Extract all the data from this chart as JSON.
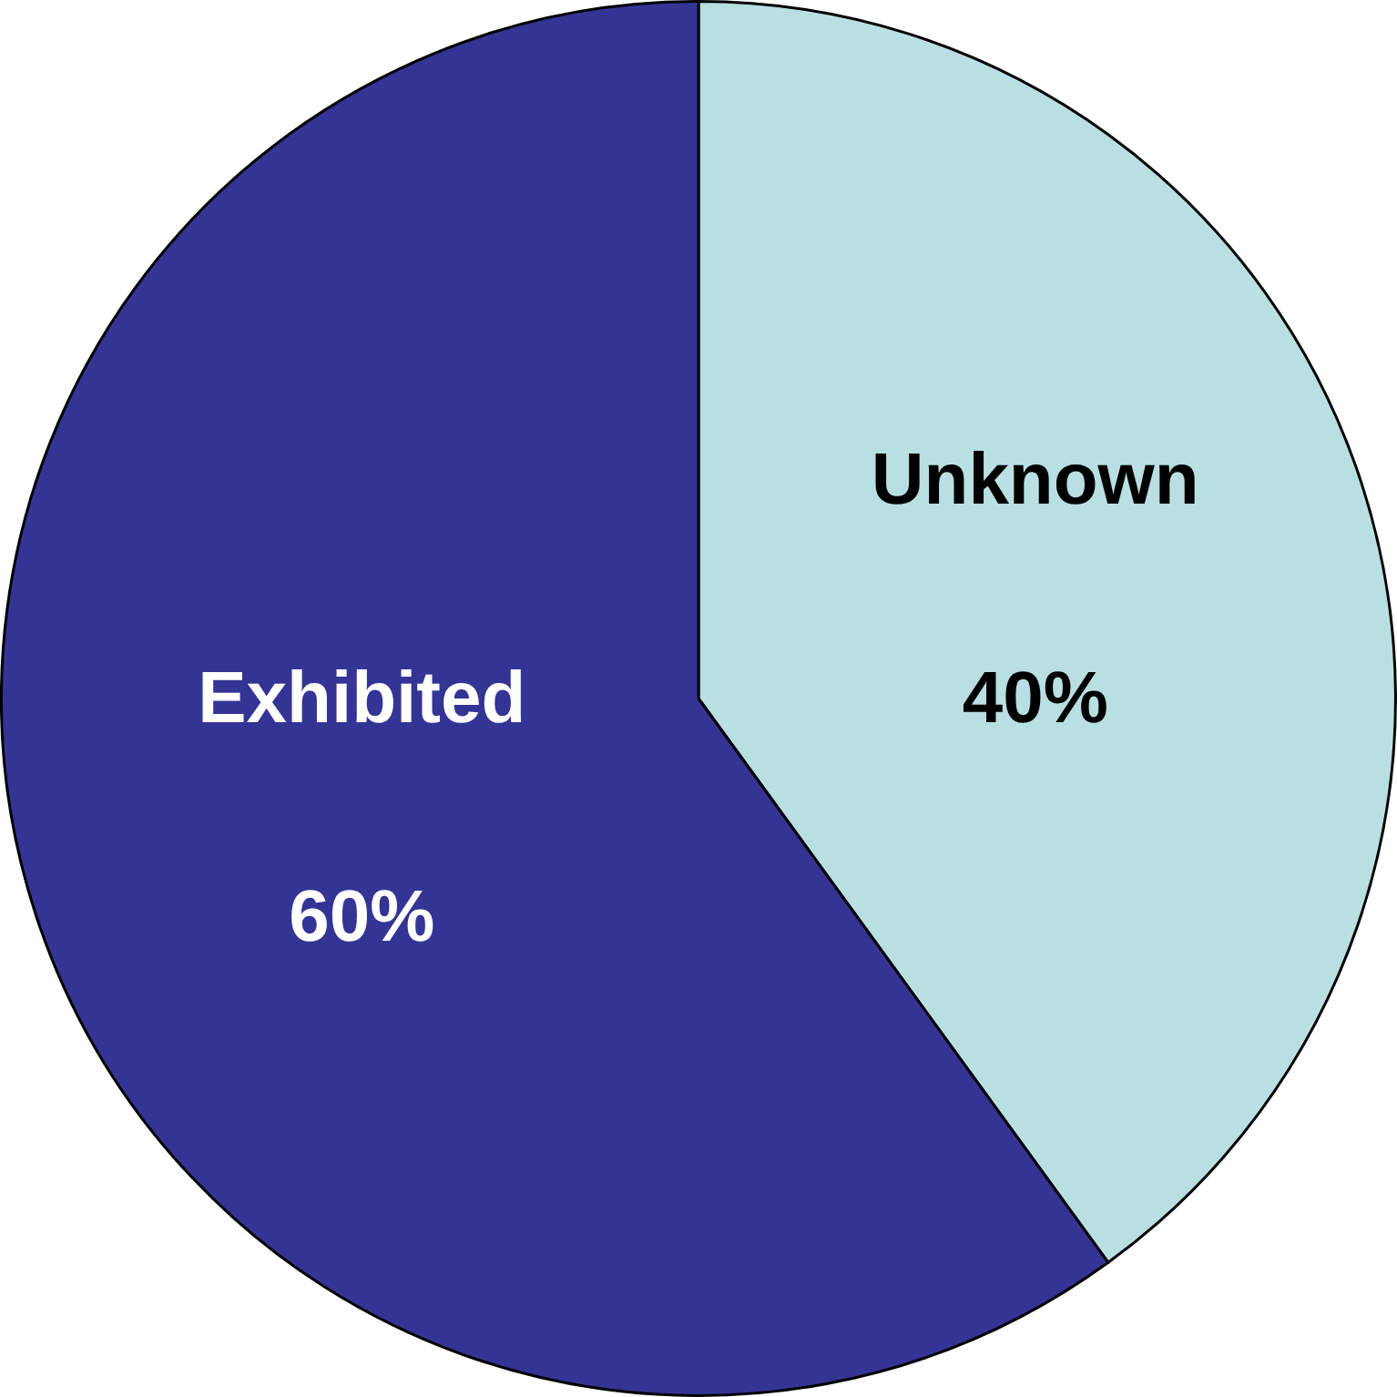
{
  "chart_data": {
    "type": "pie",
    "categories": [
      "Unknown",
      "Exhibited"
    ],
    "values": [
      40,
      60
    ],
    "colors": [
      "#b9dfe2",
      "#343495"
    ],
    "value_labels": [
      "40%",
      "60%"
    ]
  }
}
